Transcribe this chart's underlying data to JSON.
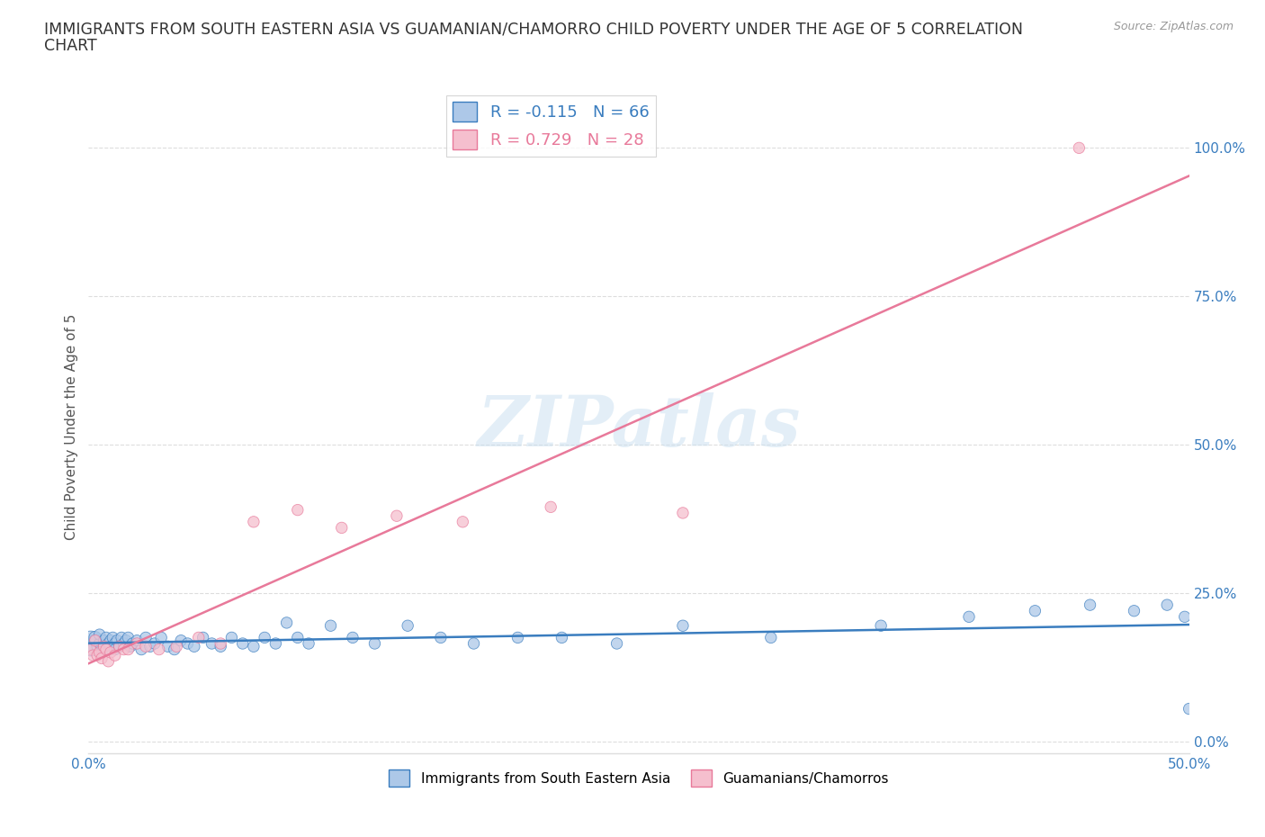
{
  "title_line1": "IMMIGRANTS FROM SOUTH EASTERN ASIA VS GUAMANIAN/CHAMORRO CHILD POVERTY UNDER THE AGE OF 5 CORRELATION",
  "title_line2": "CHART",
  "source": "Source: ZipAtlas.com",
  "ylabel_label": "Child Poverty Under the Age of 5",
  "xlim": [
    0,
    0.5
  ],
  "ylim": [
    -0.02,
    1.08
  ],
  "blue_R": -0.115,
  "blue_N": 66,
  "pink_R": 0.729,
  "pink_N": 28,
  "blue_color": "#adc8e8",
  "pink_color": "#f5bfce",
  "blue_line_color": "#3a7dbf",
  "pink_line_color": "#e8799a",
  "watermark": "ZIPatlas",
  "legend_label_blue": "Immigrants from South Eastern Asia",
  "legend_label_pink": "Guamanians/Chamorros",
  "blue_scatter_x": [
    0.001,
    0.002,
    0.003,
    0.003,
    0.004,
    0.005,
    0.005,
    0.006,
    0.007,
    0.007,
    0.008,
    0.009,
    0.01,
    0.01,
    0.011,
    0.012,
    0.012,
    0.013,
    0.014,
    0.015,
    0.016,
    0.017,
    0.018,
    0.019,
    0.02,
    0.022,
    0.024,
    0.026,
    0.028,
    0.03,
    0.033,
    0.036,
    0.039,
    0.042,
    0.045,
    0.048,
    0.052,
    0.056,
    0.06,
    0.065,
    0.07,
    0.075,
    0.08,
    0.085,
    0.09,
    0.095,
    0.1,
    0.11,
    0.12,
    0.13,
    0.145,
    0.16,
    0.175,
    0.195,
    0.215,
    0.24,
    0.27,
    0.31,
    0.36,
    0.4,
    0.43,
    0.455,
    0.475,
    0.49,
    0.498,
    0.5
  ],
  "blue_scatter_y": [
    0.165,
    0.155,
    0.17,
    0.175,
    0.16,
    0.165,
    0.18,
    0.15,
    0.17,
    0.16,
    0.175,
    0.165,
    0.17,
    0.16,
    0.175,
    0.165,
    0.155,
    0.17,
    0.16,
    0.175,
    0.165,
    0.17,
    0.175,
    0.16,
    0.165,
    0.17,
    0.155,
    0.175,
    0.16,
    0.165,
    0.175,
    0.16,
    0.155,
    0.17,
    0.165,
    0.16,
    0.175,
    0.165,
    0.16,
    0.175,
    0.165,
    0.16,
    0.175,
    0.165,
    0.2,
    0.175,
    0.165,
    0.195,
    0.175,
    0.165,
    0.195,
    0.175,
    0.165,
    0.175,
    0.175,
    0.165,
    0.195,
    0.175,
    0.195,
    0.21,
    0.22,
    0.23,
    0.22,
    0.23,
    0.21,
    0.055
  ],
  "blue_scatter_sizes": [
    400,
    100,
    100,
    100,
    80,
    80,
    80,
    80,
    80,
    80,
    80,
    80,
    80,
    80,
    80,
    80,
    80,
    80,
    80,
    80,
    80,
    80,
    80,
    80,
    80,
    80,
    80,
    80,
    80,
    80,
    80,
    80,
    80,
    80,
    80,
    80,
    80,
    80,
    80,
    80,
    80,
    80,
    80,
    80,
    80,
    80,
    80,
    80,
    80,
    80,
    80,
    80,
    80,
    80,
    80,
    80,
    80,
    80,
    80,
    80,
    80,
    80,
    80,
    80,
    80,
    80
  ],
  "pink_scatter_x": [
    0.001,
    0.002,
    0.003,
    0.004,
    0.005,
    0.006,
    0.007,
    0.008,
    0.009,
    0.01,
    0.012,
    0.014,
    0.016,
    0.018,
    0.022,
    0.026,
    0.032,
    0.04,
    0.05,
    0.06,
    0.075,
    0.095,
    0.115,
    0.14,
    0.17,
    0.21,
    0.27,
    0.45
  ],
  "pink_scatter_y": [
    0.155,
    0.145,
    0.17,
    0.145,
    0.15,
    0.14,
    0.16,
    0.155,
    0.135,
    0.15,
    0.145,
    0.16,
    0.155,
    0.155,
    0.165,
    0.16,
    0.155,
    0.16,
    0.175,
    0.165,
    0.37,
    0.39,
    0.36,
    0.38,
    0.37,
    0.395,
    0.385,
    1.0
  ],
  "pink_scatter_sizes": [
    80,
    80,
    80,
    80,
    80,
    80,
    80,
    80,
    80,
    80,
    80,
    80,
    80,
    80,
    80,
    80,
    80,
    80,
    80,
    80,
    80,
    80,
    80,
    80,
    80,
    80,
    80,
    80
  ],
  "grid_color": "#dddddd",
  "background_color": "#ffffff",
  "title_fontsize": 12.5,
  "axis_fontsize": 11,
  "tick_fontsize": 11,
  "ytick_positions": [
    0.0,
    0.25,
    0.5,
    0.75,
    1.0
  ],
  "xtick_positions": [
    0.0,
    0.5
  ]
}
